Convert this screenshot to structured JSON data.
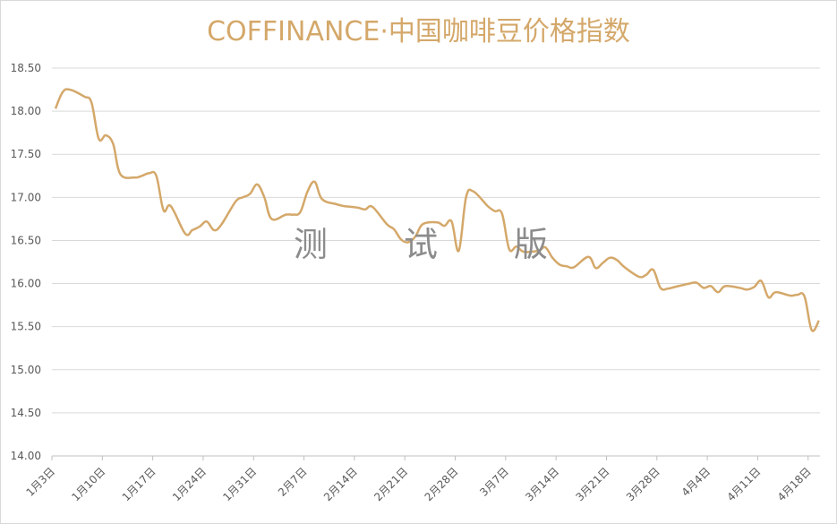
{
  "chart_data": {
    "type": "line",
    "title": "COFFINANCE·中国咖啡豆价格指数",
    "ylim": [
      14.0,
      18.5
    ],
    "yticks": [
      "14.00",
      "14.50",
      "15.00",
      "15.50",
      "16.00",
      "16.50",
      "17.00",
      "17.50",
      "18.00",
      "18.50"
    ],
    "grid": true,
    "legend": "none",
    "line_color": "#d4a86a",
    "x_labels": [
      "1月3日",
      "1月10日",
      "1月17日",
      "1月24日",
      "1月31日",
      "2月7日",
      "2月14日",
      "2月21日",
      "2月28日",
      "3月7日",
      "3月14日",
      "3月21日",
      "3月28日",
      "4月4日",
      "4月11日",
      "4月18日"
    ],
    "x_label_day_index": [
      0,
      7,
      14,
      21,
      28,
      35,
      42,
      49,
      56,
      63,
      70,
      77,
      84,
      91,
      98,
      105
    ],
    "series": [
      {
        "x": [
          0,
          1,
          2,
          4,
          5,
          6,
          7,
          8,
          9,
          11,
          12,
          13,
          14,
          15,
          16,
          18,
          19,
          20,
          21,
          22,
          23,
          25,
          26,
          27,
          28,
          29,
          30,
          32,
          33,
          34,
          35,
          36,
          37,
          39,
          40,
          41,
          42,
          43,
          44,
          46,
          47,
          48,
          49,
          50,
          51,
          53,
          54,
          55,
          56,
          57,
          58,
          60,
          61,
          62,
          63,
          64,
          65,
          67,
          68,
          69,
          70,
          71,
          72,
          74,
          75,
          76,
          77,
          78,
          79,
          81,
          82,
          83,
          84,
          85,
          86,
          88,
          89,
          90,
          91,
          92,
          93,
          95,
          96,
          97,
          98,
          99,
          100,
          102,
          103,
          104,
          105,
          106
        ],
        "y": [
          18.03,
          18.22,
          18.25,
          18.17,
          18.1,
          17.68,
          17.72,
          17.62,
          17.27,
          17.23,
          17.25,
          17.28,
          17.25,
          16.85,
          16.9,
          16.58,
          16.62,
          16.66,
          16.72,
          16.62,
          16.68,
          16.95,
          17.0,
          17.04,
          17.15,
          17.0,
          16.75,
          16.8,
          16.8,
          16.83,
          17.07,
          17.18,
          16.98,
          16.92,
          16.9,
          16.89,
          16.88,
          16.86,
          16.89,
          16.69,
          16.63,
          16.51,
          16.48,
          16.55,
          16.69,
          16.71,
          16.67,
          16.72,
          16.38,
          17.0,
          17.07,
          16.9,
          16.84,
          16.81,
          16.4,
          16.43,
          16.37,
          16.38,
          16.42,
          16.3,
          16.22,
          16.2,
          16.19,
          16.31,
          16.18,
          16.24,
          16.3,
          16.27,
          16.19,
          16.08,
          16.1,
          16.16,
          15.95,
          15.94,
          15.96,
          16.0,
          16.01,
          15.95,
          15.97,
          15.9,
          15.97,
          15.95,
          15.93,
          15.96,
          16.03,
          15.84,
          15.9,
          15.86,
          15.87,
          15.85,
          15.46,
          15.57
        ]
      }
    ]
  },
  "watermark": [
    "测",
    "试",
    "版"
  ]
}
